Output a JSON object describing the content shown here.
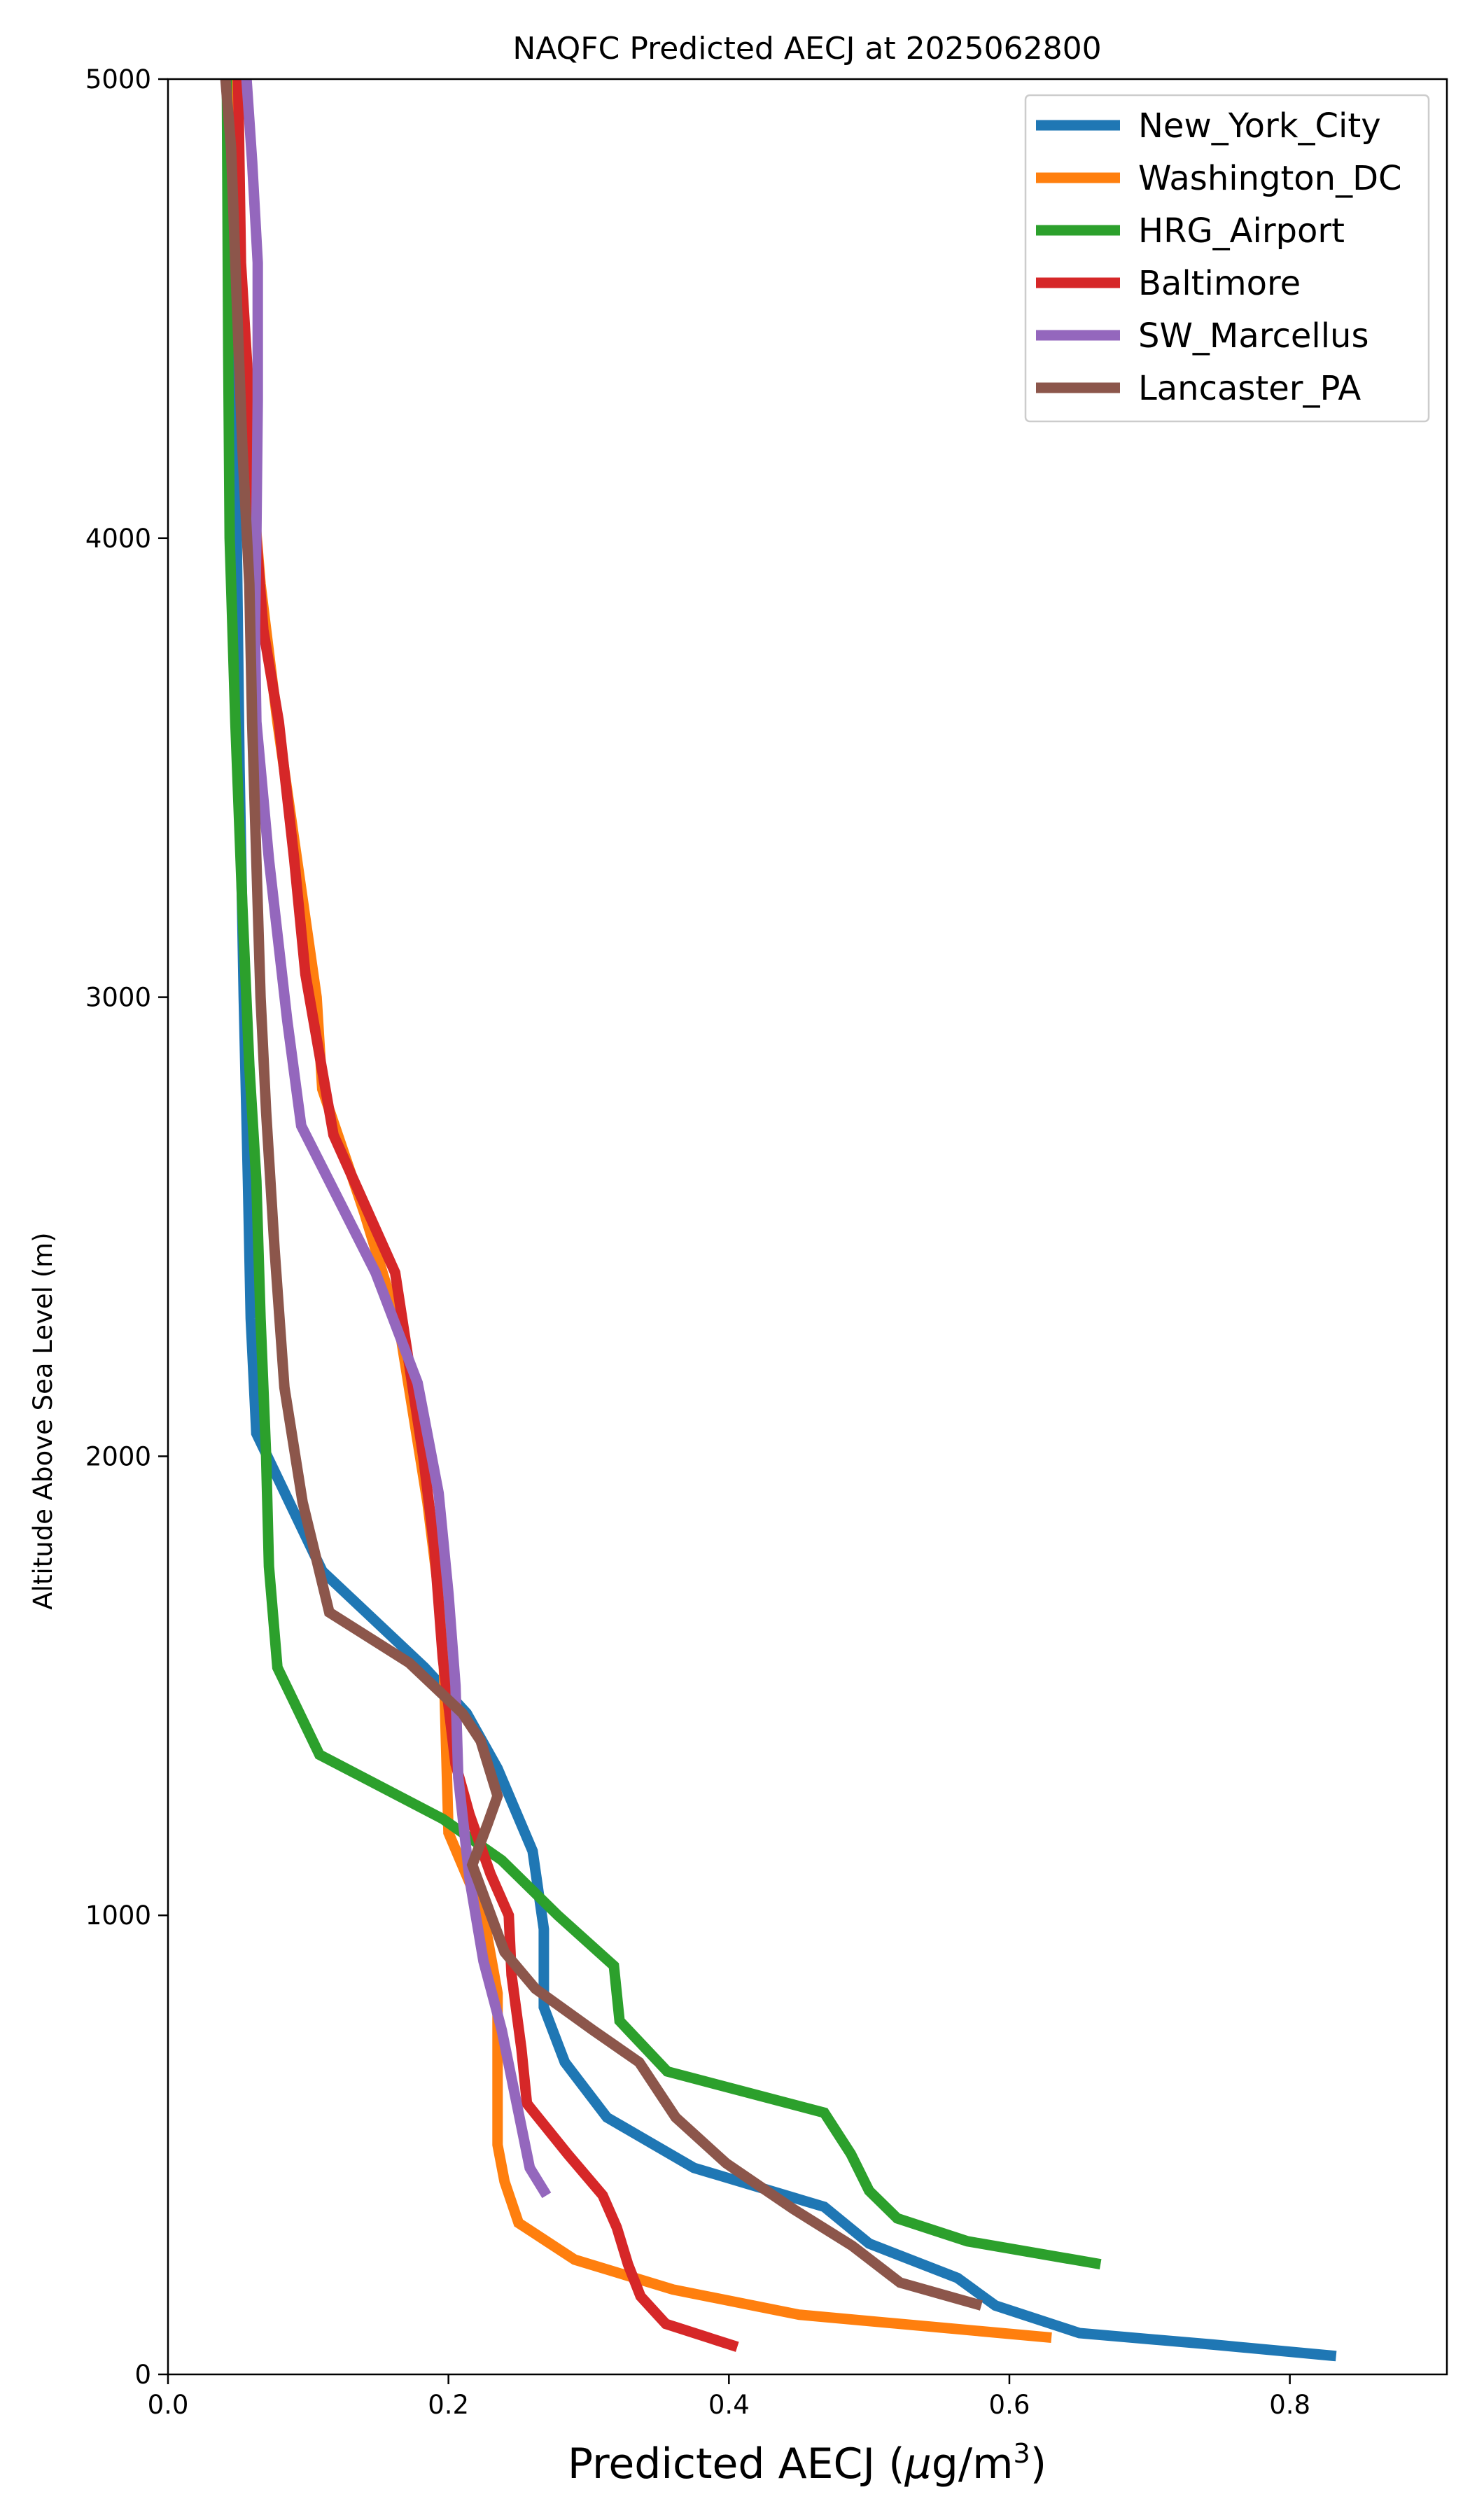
{
  "chart_data": {
    "type": "line",
    "title": "NAQFC Predicted AECJ at 2025062800",
    "xlabel": "Predicted AECJ (",
    "xlabel_symbol": "μ",
    "xlabel_unit": "g/m",
    "xlabel_exponent": "3",
    "xlabel_close": ")",
    "ylabel": "Altitude Above Sea Level (m)",
    "xlim": [
      0.0,
      0.912
    ],
    "ylim": [
      0,
      5000
    ],
    "xticks": [
      0.0,
      0.2,
      0.4,
      0.6,
      0.8
    ],
    "xtick_labels": [
      "0.0",
      "0.2",
      "0.4",
      "0.6",
      "0.8"
    ],
    "yticks": [
      0,
      1000,
      2000,
      3000,
      4000,
      5000
    ],
    "ytick_labels": [
      "0",
      "1000",
      "2000",
      "3000",
      "4000",
      "5000"
    ],
    "grid": false,
    "legend_position": "top-right",
    "series": [
      {
        "name": "New_York_City",
        "color": "#1f77b4",
        "points": [
          [
            0.833,
            40
          ],
          [
            0.745,
            65
          ],
          [
            0.65,
            90
          ],
          [
            0.59,
            150
          ],
          [
            0.563,
            210
          ],
          [
            0.5,
            285
          ],
          [
            0.468,
            365
          ],
          [
            0.375,
            450
          ],
          [
            0.313,
            560
          ],
          [
            0.283,
            680
          ],
          [
            0.268,
            800
          ],
          [
            0.268,
            970
          ],
          [
            0.26,
            1140
          ],
          [
            0.235,
            1320
          ],
          [
            0.213,
            1440
          ],
          [
            0.183,
            1540
          ],
          [
            0.11,
            1750
          ],
          [
            0.063,
            2050
          ],
          [
            0.059,
            2300
          ],
          [
            0.057,
            2600
          ],
          [
            0.054,
            3000
          ],
          [
            0.051,
            3500
          ],
          [
            0.049,
            4000
          ],
          [
            0.047,
            4500
          ],
          [
            0.045,
            5000
          ]
        ]
      },
      {
        "name": "Washington_DC",
        "color": "#ff7f0e",
        "points": [
          [
            0.63,
            80
          ],
          [
            0.45,
            130
          ],
          [
            0.36,
            185
          ],
          [
            0.29,
            250
          ],
          [
            0.25,
            330
          ],
          [
            0.24,
            420
          ],
          [
            0.235,
            500
          ],
          [
            0.235,
            830
          ],
          [
            0.225,
            1000
          ],
          [
            0.2,
            1180
          ],
          [
            0.198,
            1400
          ],
          [
            0.196,
            1630
          ],
          [
            0.185,
            1900
          ],
          [
            0.165,
            2280
          ],
          [
            0.14,
            2530
          ],
          [
            0.11,
            2800
          ],
          [
            0.106,
            3000
          ],
          [
            0.092,
            3300
          ],
          [
            0.078,
            3600
          ],
          [
            0.066,
            3900
          ],
          [
            0.058,
            4200
          ],
          [
            0.051,
            4500
          ],
          [
            0.045,
            5000
          ]
        ]
      },
      {
        "name": "HRG_Airport",
        "color": "#2ca02c",
        "points": [
          [
            0.665,
            240
          ],
          [
            0.57,
            290
          ],
          [
            0.52,
            340
          ],
          [
            0.5,
            400
          ],
          [
            0.487,
            480
          ],
          [
            0.468,
            570
          ],
          [
            0.356,
            660
          ],
          [
            0.322,
            770
          ],
          [
            0.318,
            890
          ],
          [
            0.278,
            1000
          ],
          [
            0.238,
            1120
          ],
          [
            0.196,
            1210
          ],
          [
            0.108,
            1350
          ],
          [
            0.078,
            1540
          ],
          [
            0.072,
            1760
          ],
          [
            0.07,
            2000
          ],
          [
            0.066,
            2300
          ],
          [
            0.063,
            2600
          ],
          [
            0.058,
            2850
          ],
          [
            0.053,
            3200
          ],
          [
            0.048,
            3600
          ],
          [
            0.044,
            4000
          ],
          [
            0.043,
            4400
          ],
          [
            0.042,
            5000
          ]
        ]
      },
      {
        "name": "Baltimore",
        "color": "#d62728",
        "points": [
          [
            0.406,
            60
          ],
          [
            0.355,
            110
          ],
          [
            0.337,
            170
          ],
          [
            0.328,
            240
          ],
          [
            0.32,
            320
          ],
          [
            0.31,
            390
          ],
          [
            0.285,
            480
          ],
          [
            0.256,
            590
          ],
          [
            0.252,
            710
          ],
          [
            0.245,
            870
          ],
          [
            0.243,
            1000
          ],
          [
            0.23,
            1090
          ],
          [
            0.215,
            1220
          ],
          [
            0.205,
            1330
          ],
          [
            0.196,
            1560
          ],
          [
            0.19,
            1800
          ],
          [
            0.182,
            2000
          ],
          [
            0.162,
            2400
          ],
          [
            0.118,
            2700
          ],
          [
            0.098,
            3050
          ],
          [
            0.09,
            3300
          ],
          [
            0.079,
            3600
          ],
          [
            0.068,
            3800
          ],
          [
            0.063,
            4000
          ],
          [
            0.058,
            4300
          ],
          [
            0.052,
            4600
          ],
          [
            0.05,
            5000
          ]
        ]
      },
      {
        "name": "SW_Marcellus",
        "color": "#9467bd",
        "points": [
          [
            0.27,
            390
          ],
          [
            0.258,
            450
          ],
          [
            0.248,
            600
          ],
          [
            0.238,
            750
          ],
          [
            0.225,
            900
          ],
          [
            0.215,
            1080
          ],
          [
            0.207,
            1300
          ],
          [
            0.205,
            1500
          ],
          [
            0.2,
            1700
          ],
          [
            0.193,
            1920
          ],
          [
            0.178,
            2160
          ],
          [
            0.148,
            2400
          ],
          [
            0.095,
            2720
          ],
          [
            0.085,
            2950
          ],
          [
            0.072,
            3300
          ],
          [
            0.063,
            3600
          ],
          [
            0.062,
            3800
          ],
          [
            0.063,
            4000
          ],
          [
            0.064,
            4300
          ],
          [
            0.064,
            4600
          ],
          [
            0.06,
            4820
          ],
          [
            0.056,
            5000
          ]
        ]
      },
      {
        "name": "Lancaster_PA",
        "color": "#8c564b",
        "points": [
          [
            0.58,
            150
          ],
          [
            0.522,
            200
          ],
          [
            0.488,
            280
          ],
          [
            0.446,
            360
          ],
          [
            0.398,
            460
          ],
          [
            0.362,
            560
          ],
          [
            0.336,
            680
          ],
          [
            0.303,
            750
          ],
          [
            0.262,
            840
          ],
          [
            0.24,
            920
          ],
          [
            0.217,
            1110
          ],
          [
            0.228,
            1200
          ],
          [
            0.235,
            1260
          ],
          [
            0.223,
            1380
          ],
          [
            0.21,
            1440
          ],
          [
            0.172,
            1550
          ],
          [
            0.115,
            1660
          ],
          [
            0.096,
            1900
          ],
          [
            0.083,
            2150
          ],
          [
            0.076,
            2450
          ],
          [
            0.07,
            2750
          ],
          [
            0.066,
            3000
          ],
          [
            0.063,
            3300
          ],
          [
            0.06,
            3600
          ],
          [
            0.058,
            3900
          ],
          [
            0.053,
            4200
          ],
          [
            0.048,
            4600
          ],
          [
            0.045,
            4850
          ],
          [
            0.041,
            5000
          ]
        ]
      }
    ]
  }
}
